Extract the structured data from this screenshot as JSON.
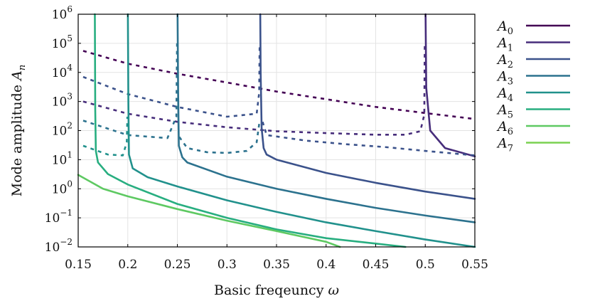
{
  "chart_data": {
    "type": "line",
    "xlabel": "Basic freqeuncy ω",
    "ylabel": "Mode amplitude A_n",
    "xlim": [
      0.15,
      0.55
    ],
    "ylim": [
      0.01,
      1000000
    ],
    "y_scale": "log",
    "x_ticks": [
      "0.15",
      "0.2",
      "0.25",
      "0.3",
      "0.35",
      "0.4",
      "0.45",
      "0.5",
      "0.55"
    ],
    "y_ticks": [
      {
        "base": "10",
        "exp": "−2"
      },
      {
        "base": "10",
        "exp": "−1"
      },
      {
        "base": "10",
        "exp": "0"
      },
      {
        "base": "10",
        "exp": "1"
      },
      {
        "base": "10",
        "exp": "2"
      },
      {
        "base": "10",
        "exp": "3"
      },
      {
        "base": "10",
        "exp": "4"
      },
      {
        "base": "10",
        "exp": "5"
      },
      {
        "base": "10",
        "exp": "6"
      }
    ],
    "grid": true,
    "legend_position": "outside-right",
    "series": [
      {
        "name": "A0",
        "sub": "0",
        "color": "#440154",
        "branches": [
          {
            "style": "dashed",
            "x": [
              0.155,
              0.2,
              0.25,
              0.3,
              0.35,
              0.4,
              0.45,
              0.5,
              0.55
            ],
            "y": [
              55000,
              20000,
              9000,
              4500,
              2200,
              1200,
              650,
              400,
              250
            ]
          }
        ]
      },
      {
        "name": "A1",
        "sub": "1",
        "color": "#472d7b",
        "branches": [
          {
            "style": "dashed",
            "x": [
              0.155,
              0.2,
              0.25,
              0.3,
              0.35,
              0.4,
              0.45,
              0.48,
              0.495,
              0.499,
              0.4995
            ],
            "y": [
              1000,
              380,
              200,
              130,
              95,
              82,
              72,
              72,
              95,
              350,
              100000
            ]
          },
          {
            "style": "solid",
            "x": [
              0.5003,
              0.501,
              0.505,
              0.52,
              0.55
            ],
            "y": [
              1000000,
              3000,
              100,
              25,
              13
            ]
          }
        ]
      },
      {
        "name": "A2",
        "sub": "2",
        "color": "#3b528b",
        "branches": [
          {
            "style": "dashed",
            "x": [
              0.155,
              0.2,
              0.25,
              0.3,
              0.33,
              0.3325,
              0.333
            ],
            "y": [
              7000,
              1800,
              650,
              300,
              380,
              2000,
              100000
            ]
          },
          {
            "style": "dashed",
            "x": [
              0.336,
              0.34,
              0.38,
              0.42,
              0.46,
              0.5,
              0.55
            ],
            "y": [
              200,
              70,
              45,
              34,
              27,
              20,
              14
            ]
          },
          {
            "style": "solid",
            "x": [
              0.3336,
              0.334,
              0.335,
              0.337,
              0.34,
              0.35,
              0.4,
              0.45,
              0.5,
              0.55
            ],
            "y": [
              1000000,
              10000,
              120,
              25,
              15,
              10,
              3.5,
              1.6,
              0.8,
              0.45
            ]
          }
        ]
      },
      {
        "name": "A3",
        "sub": "3",
        "color": "#2c728e",
        "branches": [
          {
            "style": "dashed",
            "x": [
              0.155,
              0.2,
              0.24,
              0.249,
              0.2497
            ],
            "y": [
              220,
              70,
              55,
              300,
              100000
            ]
          },
          {
            "style": "dashed",
            "x": [
              0.252,
              0.26,
              0.28,
              0.3,
              0.32,
              0.33,
              0.3328
            ],
            "y": [
              60,
              25,
              18,
              17,
              20,
              40,
              200
            ]
          },
          {
            "style": "solid",
            "x": [
              0.2502,
              0.2508,
              0.2515,
              0.255,
              0.26,
              0.3,
              0.35,
              0.4,
              0.45,
              0.5,
              0.55
            ],
            "y": [
              1000000,
              2000,
              30,
              12,
              8,
              2.6,
              1.0,
              0.45,
              0.22,
              0.12,
              0.07
            ]
          }
        ]
      },
      {
        "name": "A4",
        "sub": "4",
        "color": "#21918c",
        "branches": [
          {
            "style": "dashed",
            "x": [
              0.155,
              0.18,
              0.195,
              0.199,
              0.1996
            ],
            "y": [
              30,
              15,
              14,
              40,
              300
            ]
          },
          {
            "style": "solid",
            "x": [
              0.2001,
              0.2006,
              0.2012,
              0.205,
              0.22,
              0.25,
              0.3,
              0.35,
              0.4,
              0.45,
              0.5,
              0.55
            ],
            "y": [
              1000000,
              1000,
              15,
              5,
              2.5,
              1.2,
              0.4,
              0.16,
              0.07,
              0.035,
              0.018,
              0.01
            ]
          }
        ]
      },
      {
        "name": "A5",
        "sub": "5",
        "color": "#28ae80",
        "branches": [
          {
            "style": "solid",
            "x": [
              0.1668,
              0.1672,
              0.1678,
              0.17,
              0.18,
              0.2,
              0.25,
              0.3,
              0.35,
              0.4,
              0.45,
              0.48
            ],
            "y": [
              1000000,
              500,
              20,
              8,
              3.2,
              1.4,
              0.3,
              0.1,
              0.04,
              0.02,
              0.013,
              0.01
            ]
          }
        ]
      },
      {
        "name": "A6",
        "sub": "6",
        "color": "#5ec962",
        "branches": [
          {
            "style": "solid",
            "x": [
              0.15,
              0.175,
              0.2,
              0.25,
              0.3,
              0.35,
              0.4,
              0.414
            ],
            "y": [
              3,
              1,
              0.55,
              0.2,
              0.08,
              0.035,
              0.015,
              0.01
            ]
          }
        ]
      },
      {
        "name": "A7",
        "sub": "7",
        "color": "#7ad151",
        "branches": []
      }
    ]
  }
}
